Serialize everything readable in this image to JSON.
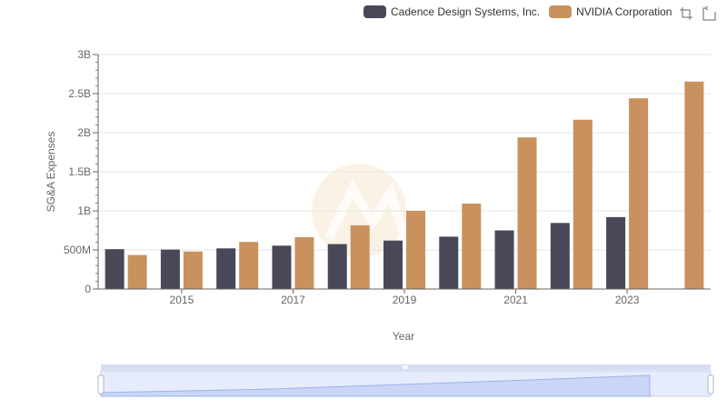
{
  "toolbox": {
    "zoom_icon": "zoom-icon",
    "restore_icon": "restore-icon"
  },
  "chart_data": {
    "type": "bar",
    "xlabel": "Year",
    "ylabel": "SG&A Expenses",
    "ylim": [
      0,
      3000000000
    ],
    "yticks": [
      "0",
      "500M",
      "1B",
      "1.5B",
      "2B",
      "2.5B",
      "3B"
    ],
    "categories": [
      "2014",
      "2015",
      "2016",
      "2017",
      "2018",
      "2019",
      "2020",
      "2021",
      "2022",
      "2023",
      "2024"
    ],
    "xtick_labels": [
      "2015",
      "2017",
      "2019",
      "2021",
      "2023"
    ],
    "grid": true,
    "legend_position": "top-right",
    "series": [
      {
        "name": "Cadence Design Systems, Inc.",
        "color": "#484858",
        "values": [
          510000000,
          505000000,
          520000000,
          555000000,
          575000000,
          620000000,
          670000000,
          750000000,
          845000000,
          920000000,
          null
        ]
      },
      {
        "name": "NVIDIA Corporation",
        "color": "#c8915e",
        "values": [
          435000000,
          480000000,
          602000000,
          663000000,
          815000000,
          1000000000,
          1093000000,
          1940000000,
          2166000000,
          2440000000,
          2654000000
        ]
      }
    ]
  }
}
